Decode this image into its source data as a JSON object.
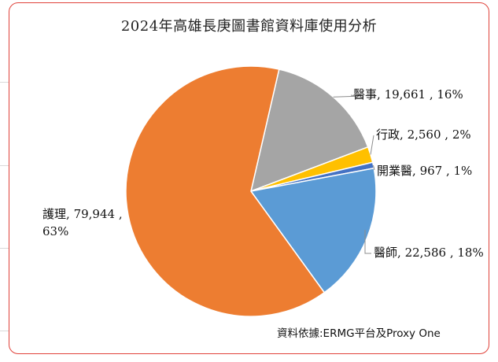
{
  "chart_data": {
    "type": "pie",
    "title": "2024年高雄長庚圖書館資料庫使用分析",
    "source": "資料依據:ERMG平台及Proxy One",
    "slices": [
      {
        "name": "醫事",
        "value": 19661,
        "value_label": "19,661",
        "percent": "16%",
        "color": "#a5a5a5"
      },
      {
        "name": "行政",
        "value": 2560,
        "value_label": "2,560",
        "percent": "2%",
        "color": "#ffc000"
      },
      {
        "name": "開業醫",
        "value": 967,
        "value_label": "967",
        "percent": "1%",
        "color": "#4472c4"
      },
      {
        "name": "醫師",
        "value": 22586,
        "value_label": "22,586",
        "percent": "18%",
        "color": "#5b9bd5"
      },
      {
        "name": "護理",
        "value": 79944,
        "value_label": "79,944",
        "percent": "63%",
        "color": "#ed7d31"
      }
    ],
    "legend": "none",
    "data_labels": "outside"
  }
}
